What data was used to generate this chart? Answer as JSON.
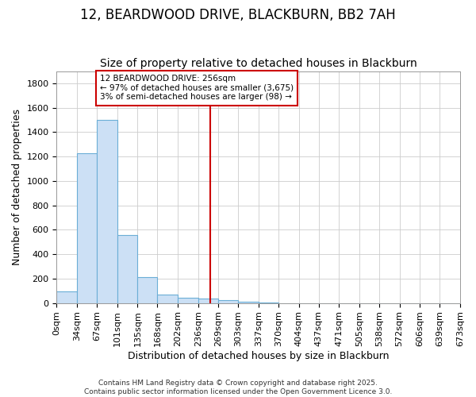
{
  "title_line1": "12, BEARDWOOD DRIVE, BLACKBURN, BB2 7AH",
  "title_line2": "Size of property relative to detached houses in Blackburn",
  "xlabel": "Distribution of detached houses by size in Blackburn",
  "ylabel": "Number of detached properties",
  "bar_edges": [
    0,
    34,
    67,
    101,
    135,
    168,
    202,
    236,
    269,
    303,
    337,
    370,
    404,
    437,
    471,
    505,
    538,
    572,
    606,
    639,
    673
  ],
  "bar_heights": [
    95,
    1230,
    1500,
    560,
    210,
    70,
    45,
    40,
    25,
    10,
    5,
    0,
    0,
    0,
    0,
    0,
    0,
    0,
    0,
    0
  ],
  "bar_color": "#cce0f5",
  "bar_edgecolor": "#6baed6",
  "property_line_x": 256,
  "property_line_color": "#cc0000",
  "annotation_text": "12 BEARDWOOD DRIVE: 256sqm\n← 97% of detached houses are smaller (3,675)\n3% of semi-detached houses are larger (98) →",
  "annotation_box_edgecolor": "#cc0000",
  "annotation_box_facecolor": "#ffffff",
  "ylim": [
    0,
    1900
  ],
  "yticks": [
    0,
    200,
    400,
    600,
    800,
    1000,
    1200,
    1400,
    1600,
    1800
  ],
  "tick_labels": [
    "0sqm",
    "34sqm",
    "67sqm",
    "101sqm",
    "135sqm",
    "168sqm",
    "202sqm",
    "236sqm",
    "269sqm",
    "303sqm",
    "337sqm",
    "370sqm",
    "404sqm",
    "437sqm",
    "471sqm",
    "505sqm",
    "538sqm",
    "572sqm",
    "606sqm",
    "639sqm",
    "673sqm"
  ],
  "background_color": "#ffffff",
  "plot_bg_color": "#ffffff",
  "grid_color": "#cccccc",
  "footer_text": "Contains HM Land Registry data © Crown copyright and database right 2025.\nContains public sector information licensed under the Open Government Licence 3.0.",
  "title_fontsize": 12,
  "subtitle_fontsize": 10,
  "axis_label_fontsize": 9,
  "tick_fontsize": 8,
  "footer_fontsize": 6.5
}
